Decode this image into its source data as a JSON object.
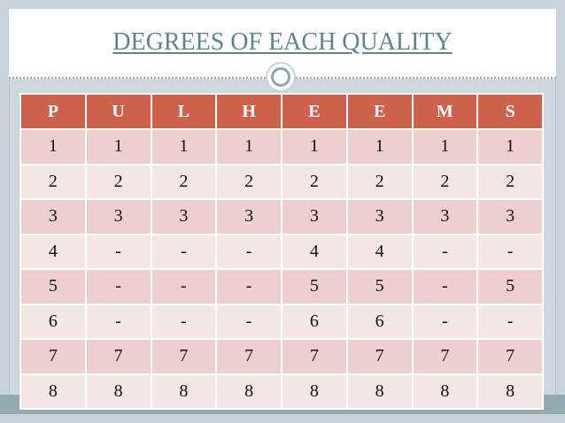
{
  "title": "DEGREES OF EACH QUALITY",
  "table": {
    "header": [
      "P",
      "U",
      "L",
      "H",
      "E",
      "E",
      "M",
      "S"
    ],
    "rows": [
      [
        "1",
        "1",
        "1",
        "1",
        "1",
        "1",
        "1",
        "1"
      ],
      [
        "2",
        "2",
        "2",
        "2",
        "2",
        "2",
        "2",
        "2"
      ],
      [
        "3",
        "3",
        "3",
        "3",
        "3",
        "3",
        "3",
        "3"
      ],
      [
        "4",
        "-",
        "-",
        "-",
        "4",
        "4",
        "-",
        "-"
      ],
      [
        "5",
        "-",
        "-",
        "-",
        "5",
        "5",
        "-",
        "5"
      ],
      [
        "6",
        "-",
        "-",
        "-",
        "6",
        "6",
        "-",
        "-"
      ],
      [
        "7",
        "7",
        "7",
        "7",
        "7",
        "7",
        "7",
        "7"
      ],
      [
        "8",
        "8",
        "8",
        "8",
        "8",
        "8",
        "8",
        "8"
      ]
    ]
  }
}
